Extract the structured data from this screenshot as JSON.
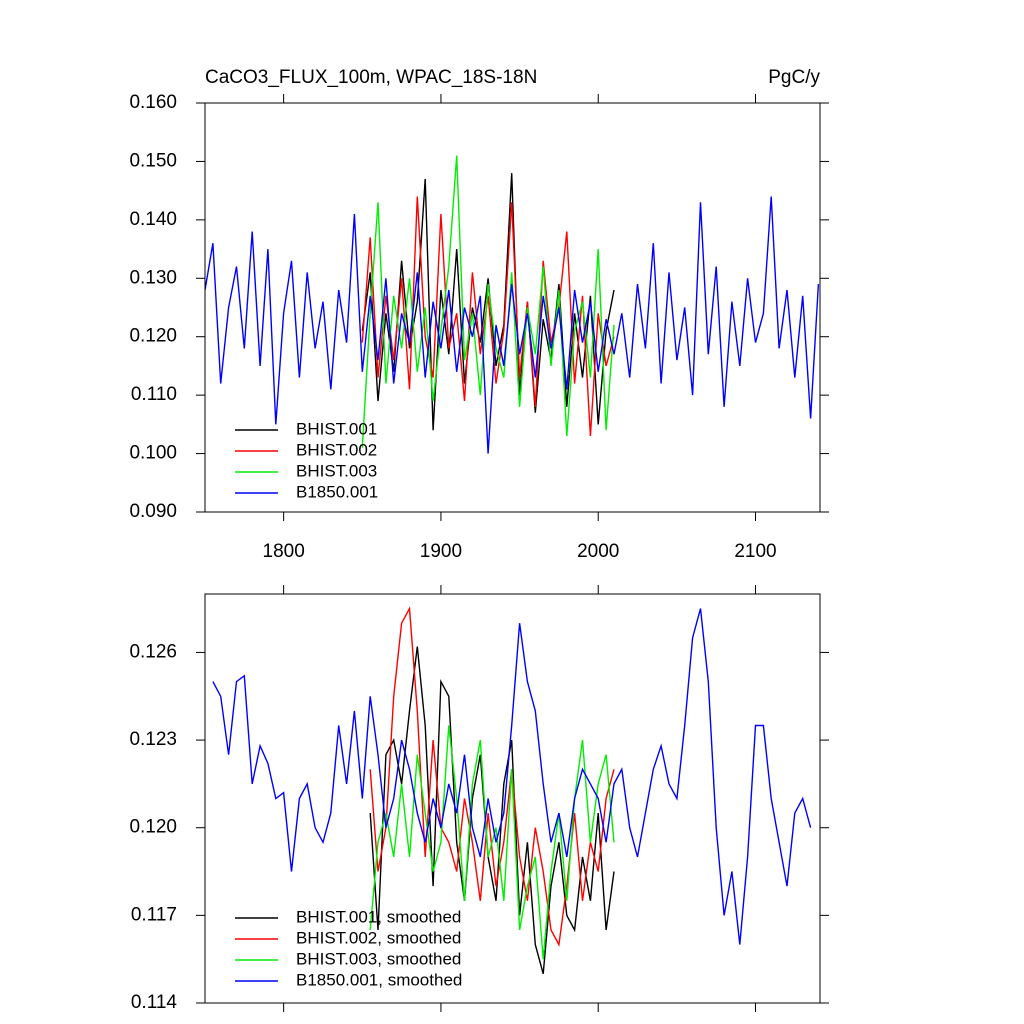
{
  "chart_data": [
    {
      "type": "line",
      "title": "CaCO3_FLUX_100m, WPAC_18S-18N",
      "units": "PgC/y",
      "xlim": [
        1750,
        2141
      ],
      "xticks": [
        1800,
        1900,
        2000,
        2100
      ],
      "ylim": [
        0.09,
        0.16
      ],
      "yticks": [
        {
          "value": 0.09,
          "label": "0.090"
        },
        {
          "value": 0.1,
          "label": "0.100"
        },
        {
          "value": 0.11,
          "label": "0.110"
        },
        {
          "value": 0.12,
          "label": "0.120"
        },
        {
          "value": 0.13,
          "label": "0.130"
        },
        {
          "value": 0.14,
          "label": "0.140"
        },
        {
          "value": 0.15,
          "label": "0.150"
        },
        {
          "value": 0.16,
          "label": "0.160"
        }
      ],
      "legend": "lower-left",
      "series": [
        {
          "name": "BHIST.001",
          "color": "#000000",
          "x": [
            1850,
            1855,
            1860,
            1865,
            1870,
            1875,
            1880,
            1885,
            1890,
            1895,
            1900,
            1905,
            1910,
            1915,
            1920,
            1925,
            1930,
            1935,
            1940,
            1945,
            1950,
            1955,
            1960,
            1965,
            1970,
            1975,
            1980,
            1985,
            1990,
            1995,
            2000,
            2005,
            2010
          ],
          "values": [
            0.121,
            0.131,
            0.109,
            0.124,
            0.114,
            0.133,
            0.118,
            0.126,
            0.147,
            0.104,
            0.128,
            0.117,
            0.135,
            0.112,
            0.125,
            0.119,
            0.13,
            0.115,
            0.122,
            0.148,
            0.11,
            0.126,
            0.107,
            0.123,
            0.116,
            0.129,
            0.108,
            0.124,
            0.113,
            0.127,
            0.105,
            0.121,
            0.128
          ]
        },
        {
          "name": "BHIST.002",
          "color": "#ff0000",
          "x": [
            1850,
            1855,
            1860,
            1865,
            1870,
            1875,
            1880,
            1885,
            1890,
            1895,
            1900,
            1905,
            1910,
            1915,
            1920,
            1925,
            1930,
            1935,
            1940,
            1945,
            1950,
            1955,
            1960,
            1965,
            1970,
            1975,
            1980,
            1985,
            1990,
            1995,
            2000,
            2005,
            2010
          ],
          "values": [
            0.119,
            0.137,
            0.113,
            0.127,
            0.116,
            0.13,
            0.111,
            0.144,
            0.12,
            0.113,
            0.141,
            0.118,
            0.124,
            0.109,
            0.131,
            0.117,
            0.127,
            0.112,
            0.121,
            0.143,
            0.113,
            0.126,
            0.108,
            0.133,
            0.119,
            0.125,
            0.138,
            0.112,
            0.127,
            0.103,
            0.124,
            0.115,
            0.12
          ]
        },
        {
          "name": "BHIST.003",
          "color": "#00ee00",
          "x": [
            1850,
            1855,
            1860,
            1865,
            1870,
            1875,
            1880,
            1885,
            1890,
            1895,
            1900,
            1905,
            1910,
            1915,
            1920,
            1925,
            1930,
            1935,
            1940,
            1945,
            1950,
            1955,
            1960,
            1965,
            1970,
            1975,
            1980,
            1985,
            1990,
            1995,
            2000,
            2005,
            2010
          ],
          "values": [
            0.101,
            0.124,
            0.143,
            0.112,
            0.127,
            0.118,
            0.13,
            0.114,
            0.125,
            0.109,
            0.121,
            0.132,
            0.151,
            0.116,
            0.124,
            0.11,
            0.129,
            0.118,
            0.113,
            0.131,
            0.108,
            0.125,
            0.117,
            0.132,
            0.115,
            0.128,
            0.103,
            0.121,
            0.126,
            0.113,
            0.135,
            0.104,
            0.122
          ]
        },
        {
          "name": "B1850.001",
          "color": "#0000ff",
          "x": [
            1750,
            1755,
            1760,
            1765,
            1770,
            1775,
            1780,
            1785,
            1790,
            1795,
            1800,
            1805,
            1810,
            1815,
            1820,
            1825,
            1830,
            1835,
            1840,
            1845,
            1850,
            1855,
            1860,
            1865,
            1870,
            1875,
            1880,
            1885,
            1890,
            1895,
            1900,
            1905,
            1910,
            1915,
            1920,
            1925,
            1930,
            1935,
            1940,
            1945,
            1950,
            1955,
            1960,
            1965,
            1970,
            1975,
            1980,
            1985,
            1990,
            1995,
            2000,
            2005,
            2010,
            2015,
            2020,
            2025,
            2030,
            2035,
            2040,
            2045,
            2050,
            2055,
            2060,
            2065,
            2070,
            2075,
            2080,
            2085,
            2090,
            2095,
            2100,
            2105,
            2110,
            2115,
            2120,
            2125,
            2130,
            2135,
            2140
          ],
          "values": [
            0.128,
            0.136,
            0.112,
            0.125,
            0.132,
            0.118,
            0.138,
            0.115,
            0.135,
            0.105,
            0.124,
            0.133,
            0.113,
            0.131,
            0.118,
            0.126,
            0.111,
            0.128,
            0.119,
            0.141,
            0.114,
            0.127,
            0.116,
            0.13,
            0.112,
            0.124,
            0.119,
            0.131,
            0.113,
            0.126,
            0.118,
            0.128,
            0.114,
            0.125,
            0.12,
            0.127,
            0.1,
            0.122,
            0.115,
            0.129,
            0.117,
            0.124,
            0.113,
            0.127,
            0.118,
            0.125,
            0.111,
            0.128,
            0.119,
            0.126,
            0.114,
            0.123,
            0.117,
            0.124,
            0.113,
            0.129,
            0.118,
            0.136,
            0.112,
            0.131,
            0.116,
            0.125,
            0.11,
            0.143,
            0.117,
            0.132,
            0.108,
            0.126,
            0.115,
            0.13,
            0.119,
            0.124,
            0.144,
            0.118,
            0.128,
            0.113,
            0.127,
            0.106,
            0.129
          ]
        }
      ]
    },
    {
      "type": "line",
      "xlim": [
        1750,
        2141
      ],
      "ylim": [
        0.114,
        0.128
      ],
      "yticks": [
        0.114,
        0.117,
        {
          "value": 0.12,
          "label": "0.120"
        },
        0.123,
        0.126
      ],
      "legend": "lower-left",
      "series": [
        {
          "name": "BHIST.001, smoothed",
          "color": "#000000",
          "x": [
            1855,
            1860,
            1865,
            1870,
            1875,
            1880,
            1885,
            1890,
            1895,
            1900,
            1905,
            1910,
            1915,
            1920,
            1925,
            1930,
            1935,
            1940,
            1945,
            1950,
            1955,
            1960,
            1965,
            1970,
            1975,
            1980,
            1985,
            1990,
            1995,
            2000,
            2005,
            2010
          ],
          "values": [
            0.1205,
            0.1165,
            0.1225,
            0.123,
            0.1215,
            0.124,
            0.1262,
            0.1235,
            0.118,
            0.125,
            0.1245,
            0.1195,
            0.1175,
            0.121,
            0.1225,
            0.119,
            0.1175,
            0.1215,
            0.123,
            0.117,
            0.1195,
            0.116,
            0.115,
            0.118,
            0.1195,
            0.117,
            0.1165,
            0.119,
            0.1175,
            0.1205,
            0.1165,
            0.1185
          ]
        },
        {
          "name": "BHIST.002, smoothed",
          "color": "#ff0000",
          "x": [
            1855,
            1860,
            1865,
            1870,
            1875,
            1880,
            1885,
            1890,
            1895,
            1900,
            1905,
            1910,
            1915,
            1920,
            1925,
            1930,
            1935,
            1940,
            1945,
            1950,
            1955,
            1960,
            1965,
            1970,
            1975,
            1980,
            1985,
            1990,
            1995,
            2000,
            2005,
            2010
          ],
          "values": [
            0.122,
            0.1185,
            0.12,
            0.1245,
            0.127,
            0.1275,
            0.124,
            0.119,
            0.123,
            0.12,
            0.1195,
            0.1185,
            0.121,
            0.1195,
            0.1175,
            0.1205,
            0.118,
            0.1195,
            0.122,
            0.119,
            0.1175,
            0.12,
            0.1185,
            0.1165,
            0.116,
            0.118,
            0.1205,
            0.1175,
            0.1195,
            0.1185,
            0.121,
            0.122
          ]
        },
        {
          "name": "BHIST.003, smoothed",
          "color": "#00ee00",
          "x": [
            1855,
            1860,
            1865,
            1870,
            1875,
            1880,
            1885,
            1890,
            1895,
            1900,
            1905,
            1910,
            1915,
            1920,
            1925,
            1930,
            1935,
            1940,
            1945,
            1950,
            1955,
            1960,
            1965,
            1970,
            1975,
            1980,
            1985,
            1990,
            1995,
            2000,
            2005,
            2010
          ],
          "values": [
            0.1165,
            0.1195,
            0.1205,
            0.119,
            0.1215,
            0.119,
            0.1225,
            0.1205,
            0.1185,
            0.1195,
            0.1235,
            0.121,
            0.1175,
            0.1215,
            0.123,
            0.119,
            0.12,
            0.1175,
            0.122,
            0.1165,
            0.118,
            0.119,
            0.1155,
            0.1185,
            0.1205,
            0.1175,
            0.121,
            0.123,
            0.1195,
            0.1215,
            0.1225,
            0.1195
          ]
        },
        {
          "name": "B1850.001, smoothed",
          "color": "#0000ff",
          "x": [
            1755,
            1760,
            1765,
            1770,
            1775,
            1780,
            1785,
            1790,
            1795,
            1800,
            1805,
            1810,
            1815,
            1820,
            1825,
            1830,
            1835,
            1840,
            1845,
            1850,
            1855,
            1860,
            1865,
            1870,
            1875,
            1880,
            1885,
            1890,
            1895,
            1900,
            1905,
            1910,
            1915,
            1920,
            1925,
            1930,
            1935,
            1940,
            1945,
            1950,
            1955,
            1960,
            1965,
            1970,
            1975,
            1980,
            1985,
            1990,
            1995,
            2000,
            2005,
            2010,
            2015,
            2020,
            2025,
            2030,
            2035,
            2040,
            2045,
            2050,
            2055,
            2060,
            2065,
            2070,
            2075,
            2080,
            2085,
            2090,
            2095,
            2100,
            2105,
            2110,
            2115,
            2120,
            2125,
            2130,
            2135
          ],
          "values": [
            0.125,
            0.1245,
            0.1225,
            0.125,
            0.1252,
            0.1215,
            0.1228,
            0.1222,
            0.121,
            0.1212,
            0.1185,
            0.121,
            0.1215,
            0.12,
            0.1195,
            0.1205,
            0.1235,
            0.1215,
            0.124,
            0.121,
            0.1245,
            0.1225,
            0.12,
            0.121,
            0.123,
            0.122,
            0.1205,
            0.1195,
            0.121,
            0.12,
            0.1215,
            0.1205,
            0.1225,
            0.12,
            0.119,
            0.121,
            0.1195,
            0.1205,
            0.1235,
            0.127,
            0.125,
            0.124,
            0.1215,
            0.1195,
            0.1205,
            0.119,
            0.121,
            0.122,
            0.1215,
            0.121,
            0.1195,
            0.1215,
            0.122,
            0.12,
            0.119,
            0.1205,
            0.122,
            0.1228,
            0.1215,
            0.121,
            0.1235,
            0.1265,
            0.1275,
            0.125,
            0.12,
            0.117,
            0.1185,
            0.116,
            0.119,
            0.1235,
            0.1235,
            0.121,
            0.1195,
            0.118,
            0.1205,
            0.121,
            0.12
          ]
        }
      ]
    }
  ]
}
